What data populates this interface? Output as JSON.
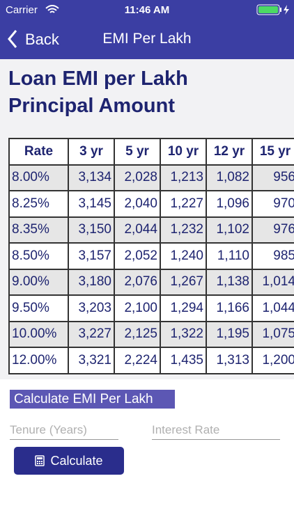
{
  "status_bar": {
    "carrier": "Carrier",
    "time": "11:46 AM"
  },
  "nav": {
    "back": "Back",
    "title": "EMI Per Lakh"
  },
  "heading": [
    "Loan EMI per Lakh",
    "Principal Amount"
  ],
  "table": {
    "header": [
      "Rate",
      "3 yr",
      "5 yr",
      "10 yr",
      "12 yr",
      "15 yr"
    ],
    "rows": [
      [
        "8.00%",
        "3,134",
        "2,028",
        "1,213",
        "1,082",
        "956"
      ],
      [
        "8.25%",
        "3,145",
        "2,040",
        "1,227",
        "1,096",
        "970"
      ],
      [
        "8.35%",
        "3,150",
        "2,044",
        "1,232",
        "1,102",
        "976"
      ],
      [
        "8.50%",
        "3,157",
        "2,052",
        "1,240",
        "1,110",
        "985"
      ],
      [
        "9.00%",
        "3,180",
        "2,076",
        "1,267",
        "1,138",
        "1,014"
      ],
      [
        "9.50%",
        "3,203",
        "2,100",
        "1,294",
        "1,166",
        "1,044"
      ],
      [
        "10.00%",
        "3,227",
        "2,125",
        "1,322",
        "1,195",
        "1,075"
      ],
      [
        "12.00%",
        "3,321",
        "2,224",
        "1,435",
        "1,313",
        "1,200"
      ]
    ]
  },
  "form": {
    "section_label": "Calculate EMI Per Lakh",
    "tenure_placeholder": "Tenure (Years)",
    "rate_placeholder": "Interest Rate",
    "button": "Calculate"
  }
}
